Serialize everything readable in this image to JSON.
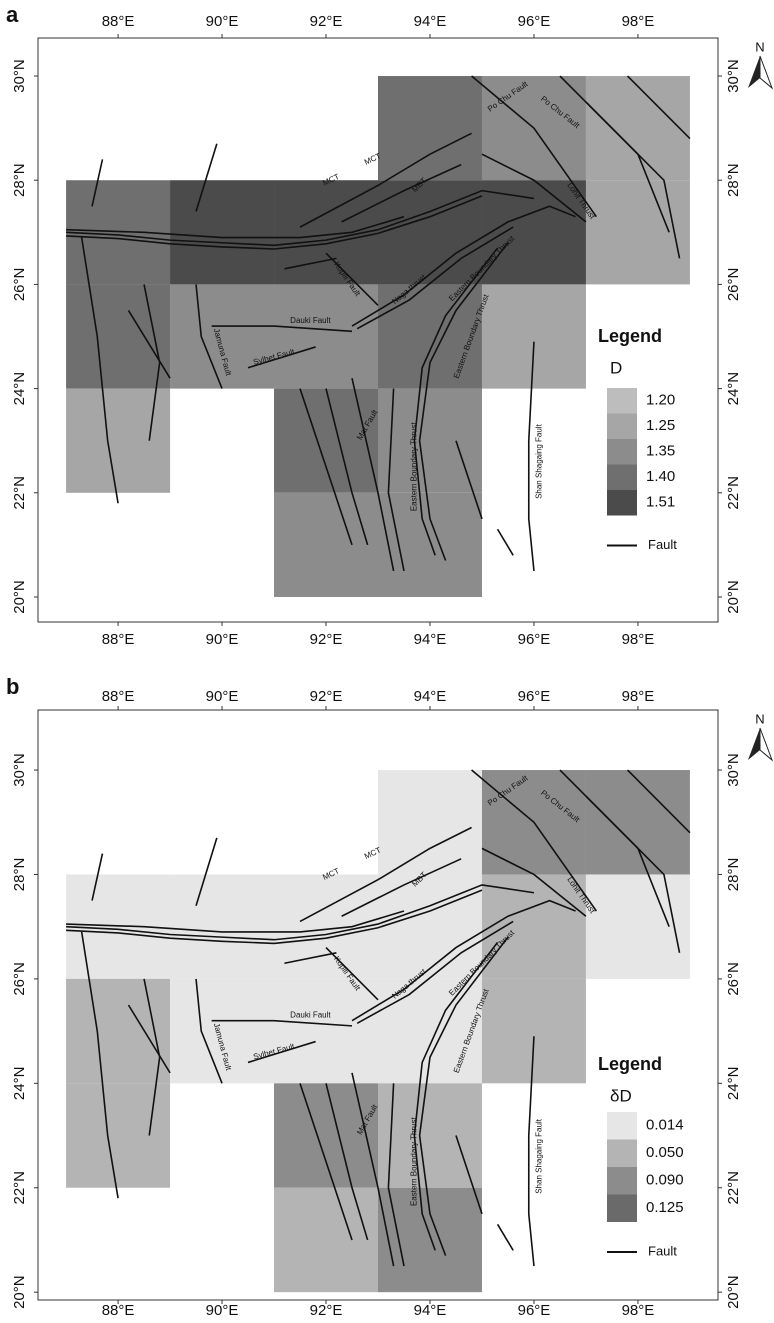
{
  "figure": {
    "fault_labels": [
      "Po Chu Fault",
      "Po Chu Fault",
      "Lohit Thrust",
      "MCT",
      "MCT",
      "MBT",
      "Naga thrust",
      "Dauki Fault",
      "Sylhet Fault",
      "Jamuna Fault",
      "Eastern Boundary Thrust",
      "Eastern Boundary Thrust",
      "Eastern Boundary Thrust",
      "Shan Shagaing Fault",
      "Kopili Fault",
      "Mat Fault"
    ],
    "panels": [
      {
        "label": "a",
        "north": "N",
        "xlim": [
          86.46,
          99.54
        ],
        "ylim": [
          19.52,
          30.73
        ],
        "xticks": [
          {
            "value": 88,
            "label": "88°E"
          },
          {
            "value": 90,
            "label": "90°E"
          },
          {
            "value": 92,
            "label": "92°E"
          },
          {
            "value": 94,
            "label": "94°E"
          },
          {
            "value": 96,
            "label": "96°E"
          },
          {
            "value": 98,
            "label": "98°E"
          }
        ],
        "yticks": [
          {
            "value": 20,
            "label": "20°N"
          },
          {
            "value": 22,
            "label": "22°N"
          },
          {
            "value": 24,
            "label": "24°N"
          },
          {
            "value": 26,
            "label": "26°N"
          },
          {
            "value": 28,
            "label": "28°N"
          },
          {
            "value": 30,
            "label": "30°N"
          }
        ],
        "legend": {
          "title": "Legend",
          "variable": "D",
          "line_label": "Fault",
          "classes": [
            {
              "value": 1.2,
              "label": "1.20",
              "color": "#bdbdbd"
            },
            {
              "value": 1.25,
              "label": "1.25",
              "color": "#a6a6a6"
            },
            {
              "value": 1.35,
              "label": "1.35",
              "color": "#8c8c8c"
            },
            {
              "value": 1.4,
              "label": "1.40",
              "color": "#6f6f6f"
            },
            {
              "value": 1.51,
              "label": "1.51",
              "color": "#4b4b4b"
            }
          ]
        },
        "cells": [
          {
            "lon": 93,
            "lat": 28,
            "value": 1.4
          },
          {
            "lon": 95,
            "lat": 28,
            "value": 1.35
          },
          {
            "lon": 97,
            "lat": 28,
            "value": 1.25
          },
          {
            "lon": 87,
            "lat": 26,
            "value": 1.4
          },
          {
            "lon": 89,
            "lat": 26,
            "value": 1.51
          },
          {
            "lon": 91,
            "lat": 26,
            "value": 1.51
          },
          {
            "lon": 93,
            "lat": 26,
            "value": 1.51
          },
          {
            "lon": 95,
            "lat": 26,
            "value": 1.51
          },
          {
            "lon": 97,
            "lat": 26,
            "value": 1.25
          },
          {
            "lon": 87,
            "lat": 24,
            "value": 1.4
          },
          {
            "lon": 89,
            "lat": 24,
            "value": 1.35
          },
          {
            "lon": 91,
            "lat": 24,
            "value": 1.35
          },
          {
            "lon": 93,
            "lat": 24,
            "value": 1.4
          },
          {
            "lon": 95,
            "lat": 24,
            "value": 1.25
          },
          {
            "lon": 87,
            "lat": 22,
            "value": 1.25
          },
          {
            "lon": 91,
            "lat": 22,
            "value": 1.4
          },
          {
            "lon": 93,
            "lat": 22,
            "value": 1.35
          },
          {
            "lon": 91,
            "lat": 20,
            "value": 1.35
          },
          {
            "lon": 93,
            "lat": 20,
            "value": 1.35
          }
        ]
      },
      {
        "label": "b",
        "north": "N",
        "xlim": [
          86.46,
          99.54
        ],
        "ylim": [
          19.85,
          31.15
        ],
        "xticks": [
          {
            "value": 88,
            "label": "88°E"
          },
          {
            "value": 90,
            "label": "90°E"
          },
          {
            "value": 92,
            "label": "92°E"
          },
          {
            "value": 94,
            "label": "94°E"
          },
          {
            "value": 96,
            "label": "96°E"
          },
          {
            "value": 98,
            "label": "98°E"
          }
        ],
        "yticks": [
          {
            "value": 20,
            "label": "20°N"
          },
          {
            "value": 22,
            "label": "22°N"
          },
          {
            "value": 24,
            "label": "24°N"
          },
          {
            "value": 26,
            "label": "26°N"
          },
          {
            "value": 28,
            "label": "28°N"
          },
          {
            "value": 30,
            "label": "30°N"
          }
        ],
        "legend": {
          "title": "Legend",
          "variable": "δD",
          "line_label": "Fault",
          "classes": [
            {
              "value": 0.014,
              "label": "0.014",
              "color": "#e6e6e6"
            },
            {
              "value": 0.05,
              "label": "0.050",
              "color": "#b4b4b4"
            },
            {
              "value": 0.09,
              "label": "0.090",
              "color": "#8c8c8c"
            },
            {
              "value": 0.125,
              "label": "0.125",
              "color": "#6a6a6a"
            }
          ]
        },
        "cells": [
          {
            "lon": 93,
            "lat": 28,
            "value": 0.014
          },
          {
            "lon": 95,
            "lat": 28,
            "value": 0.09
          },
          {
            "lon": 97,
            "lat": 28,
            "value": 0.09
          },
          {
            "lon": 87,
            "lat": 26,
            "value": 0.014
          },
          {
            "lon": 89,
            "lat": 26,
            "value": 0.014
          },
          {
            "lon": 91,
            "lat": 26,
            "value": 0.014
          },
          {
            "lon": 93,
            "lat": 26,
            "value": 0.014
          },
          {
            "lon": 95,
            "lat": 26,
            "value": 0.05
          },
          {
            "lon": 97,
            "lat": 26,
            "value": 0.014
          },
          {
            "lon": 87,
            "lat": 24,
            "value": 0.05
          },
          {
            "lon": 89,
            "lat": 24,
            "value": 0.014
          },
          {
            "lon": 91,
            "lat": 24,
            "value": 0.014
          },
          {
            "lon": 93,
            "lat": 24,
            "value": 0.014
          },
          {
            "lon": 95,
            "lat": 24,
            "value": 0.05
          },
          {
            "lon": 87,
            "lat": 22,
            "value": 0.05
          },
          {
            "lon": 91,
            "lat": 22,
            "value": 0.09
          },
          {
            "lon": 93,
            "lat": 22,
            "value": 0.05
          },
          {
            "lon": 91,
            "lat": 20,
            "value": 0.05
          },
          {
            "lon": 93,
            "lat": 20,
            "value": 0.09
          }
        ]
      }
    ]
  }
}
